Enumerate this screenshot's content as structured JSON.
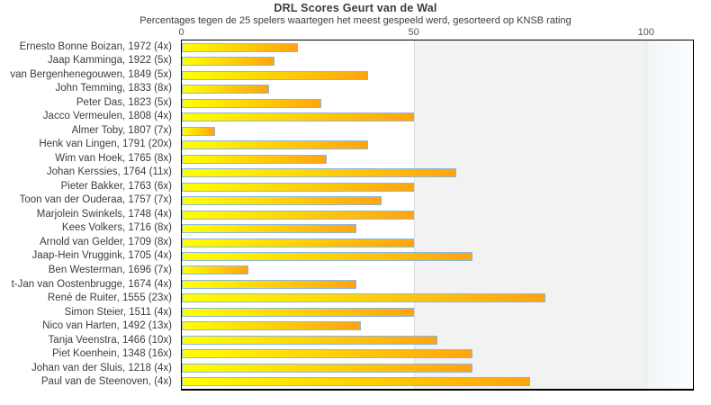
{
  "chart_data": {
    "type": "bar",
    "orientation": "horizontal",
    "title": "DRL Scores Geurt van de Wal",
    "subtitle": "Percentages tegen de 25 spelers waartegen het meest gespeeld werd, gesorteerd op KNSB rating",
    "xlabel": "",
    "ylabel": "",
    "xlim": [
      0,
      110
    ],
    "x_ticks": [
      0,
      50,
      100
    ],
    "grid": "off",
    "legend": "none",
    "background_bands": [
      {
        "from": 0,
        "to": 50,
        "color": "#ffffff"
      },
      {
        "from": 50,
        "to": 100,
        "color": "#f2f2f2"
      },
      {
        "from": 100,
        "to": 110,
        "color": "#f8fbfe"
      }
    ],
    "categories": [
      "Ernesto Bonne Boizan, 1972 (4x)",
      "Jaap Kamminga, 1922 (5x)",
      "van Bergenhenegouwen, 1849 (5x)",
      "John Temming, 1833 (8x)",
      "Peter Das, 1823 (5x)",
      "Jacco Vermeulen, 1808 (4x)",
      "Almer Toby, 1807 (7x)",
      "Henk van Lingen, 1791 (20x)",
      "Wim van Hoek, 1765 (8x)",
      "Johan Kerssies, 1764 (11x)",
      "Pieter Bakker, 1763 (6x)",
      "Toon van der Ouderaa, 1757 (7x)",
      "Marjolein Swinkels, 1748 (4x)",
      "Kees Volkers, 1716 (8x)",
      "Arnold van Gelder, 1709 (8x)",
      "Jaap-Hein Vruggink, 1705 (4x)",
      "Ben Westerman, 1696 (7x)",
      "t-Jan van Oostenbrugge, 1674 (4x)",
      "René de Ruiter, 1555 (23x)",
      "Simon Steier, 1511 (4x)",
      "Nico van Harten, 1492 (13x)",
      "Tanja Veenstra, 1466 (10x)",
      "Piet Koenhein, 1348 (16x)",
      "Johan van der Sluis, 1218 (4x)",
      "Paul van de Steenoven,  (4x)"
    ],
    "values": [
      25,
      20,
      40,
      18.75,
      30,
      50,
      7.1,
      40,
      31.25,
      59.1,
      50,
      42.9,
      50,
      37.5,
      50,
      62.5,
      14.3,
      37.5,
      78.3,
      50,
      38.5,
      55,
      62.5,
      62.5,
      75
    ],
    "colors": {
      "bar_gradient_left": "#ffff00",
      "bar_gradient_right": "#ffa40e",
      "bar_border": "#8ab5e3",
      "plot_border": "#000000",
      "band_0_50": "#ffffff",
      "band_50_100": "#f2f2f2",
      "band_over_100": "#fbfdff",
      "title_color": "#3c3c3c",
      "label_color": "#3c3c3c",
      "tick_color": "#555555"
    }
  }
}
